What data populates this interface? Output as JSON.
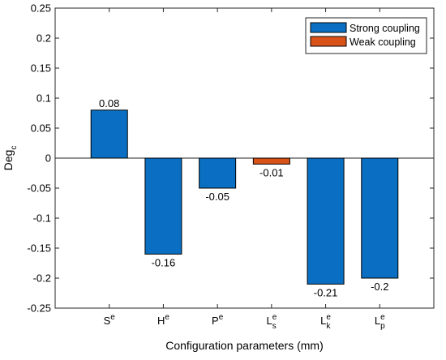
{
  "chart_data": {
    "type": "bar",
    "categories": [
      {
        "base": "S",
        "sup": "e",
        "sub": ""
      },
      {
        "base": "H",
        "sup": "e",
        "sub": ""
      },
      {
        "base": "P",
        "sup": "e",
        "sub": ""
      },
      {
        "base": "L",
        "sup": "e",
        "sub": "s"
      },
      {
        "base": "L",
        "sup": "e",
        "sub": "k"
      },
      {
        "base": "L",
        "sup": "e",
        "sub": "p"
      }
    ],
    "values": [
      0.08,
      -0.16,
      -0.05,
      -0.01,
      -0.21,
      -0.2
    ],
    "value_labels": [
      "0.08",
      "-0.16",
      "-0.05",
      "-0.01",
      "-0.21",
      "-0.2"
    ],
    "series_membership": [
      "Strong coupling",
      "Strong coupling",
      "Strong coupling",
      "Weak coupling",
      "Strong coupling",
      "Strong coupling"
    ],
    "series": [
      {
        "name": "Strong coupling",
        "color": "#0a6fc2"
      },
      {
        "name": "Weak coupling",
        "color": "#d95319"
      }
    ],
    "xlabel": "Configuration parameters (mm)",
    "ylabel": {
      "base": "Deg",
      "sub": "c"
    },
    "ylim": [
      -0.25,
      0.25
    ],
    "yticks": [
      -0.25,
      -0.2,
      -0.15,
      -0.1,
      -0.05,
      0,
      0.05,
      0.1,
      0.15,
      0.2,
      0.25
    ],
    "ytick_labels": [
      "-0.25",
      "-0.2",
      "-0.15",
      "-0.1",
      "-0.05",
      "0",
      "0.05",
      "0.1",
      "0.15",
      "0.2",
      "0.25"
    ],
    "grid": false,
    "legend_position": "top-right"
  }
}
